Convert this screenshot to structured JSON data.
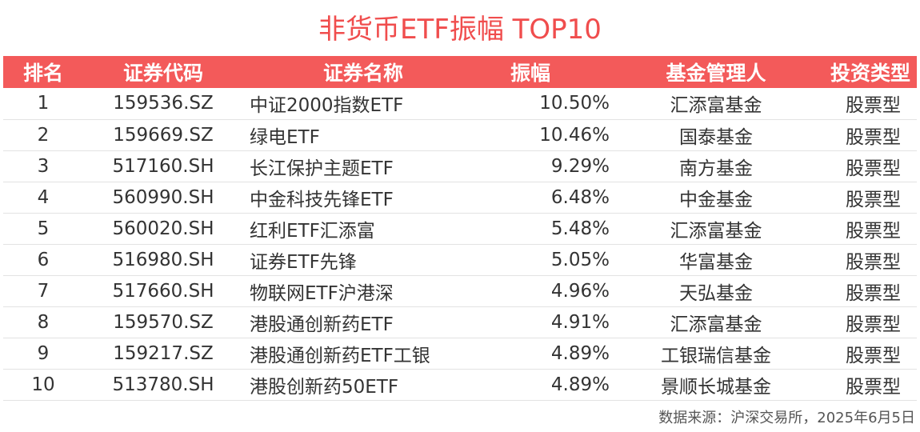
{
  "title": "非货币ETF振幅 TOP10",
  "headers": {
    "rank": "排名",
    "code": "证券代码",
    "name": "证券名称",
    "amplitude": "振幅",
    "manager": "基金管理人",
    "type": "投资类型"
  },
  "rows": [
    {
      "rank": "1",
      "code": "159536.SZ",
      "name": "中证2000指数ETF",
      "amplitude": "10.50%",
      "manager": "汇添富基金",
      "type": "股票型"
    },
    {
      "rank": "2",
      "code": "159669.SZ",
      "name": "绿电ETF",
      "amplitude": "10.46%",
      "manager": "国泰基金",
      "type": "股票型"
    },
    {
      "rank": "3",
      "code": "517160.SH",
      "name": "长江保护主题ETF",
      "amplitude": "9.29%",
      "manager": "南方基金",
      "type": "股票型"
    },
    {
      "rank": "4",
      "code": "560990.SH",
      "name": "中金科技先锋ETF",
      "amplitude": "6.48%",
      "manager": "中金基金",
      "type": "股票型"
    },
    {
      "rank": "5",
      "code": "560020.SH",
      "name": "红利ETF汇添富",
      "amplitude": "5.48%",
      "manager": "汇添富基金",
      "type": "股票型"
    },
    {
      "rank": "6",
      "code": "516980.SH",
      "name": "证券ETF先锋",
      "amplitude": "5.05%",
      "manager": "华富基金",
      "type": "股票型"
    },
    {
      "rank": "7",
      "code": "517660.SH",
      "name": "物联网ETF沪港深",
      "amplitude": "4.96%",
      "manager": "天弘基金",
      "type": "股票型"
    },
    {
      "rank": "8",
      "code": "159570.SZ",
      "name": "港股通创新药ETF",
      "amplitude": "4.91%",
      "manager": "汇添富基金",
      "type": "股票型"
    },
    {
      "rank": "9",
      "code": "159217.SZ",
      "name": "港股通创新药ETF工银",
      "amplitude": "4.89%",
      "manager": "工银瑞信基金",
      "type": "股票型"
    },
    {
      "rank": "10",
      "code": "513780.SH",
      "name": "港股创新药50ETF",
      "amplitude": "4.89%",
      "manager": "景顺长城基金",
      "type": "股票型"
    }
  ],
  "source": "数据来源：沪深交易所，2025年6月5日",
  "colors": {
    "accent": "#f35a5a",
    "title": "#f04d4d"
  }
}
